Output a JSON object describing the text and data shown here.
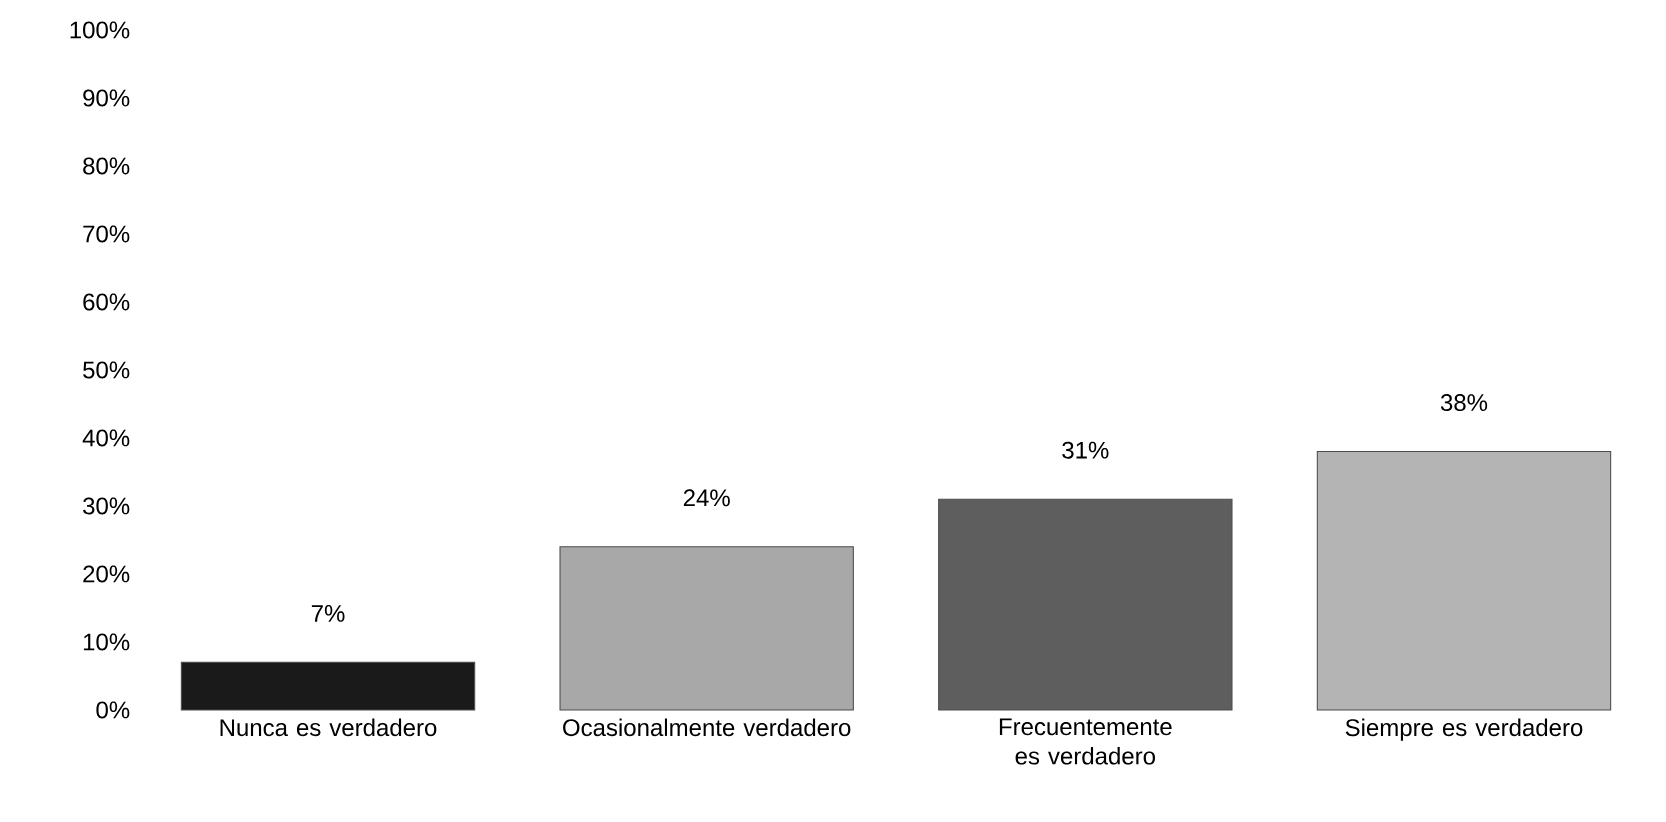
{
  "chart_data": {
    "type": "bar",
    "categories": [
      "Nunca es verdadero",
      "Ocasionalmente verdadero",
      "Frecuentemente es verdadero",
      "Siempre es verdadero"
    ],
    "values": [
      7,
      24,
      31,
      38
    ],
    "colors": [
      "#1a1a1a",
      "#a8a8a8",
      "#5e5e5e",
      "#b4b4b4"
    ],
    "value_labels": [
      "7%",
      "24%",
      "31%",
      "38%"
    ],
    "ylim": [
      0,
      100
    ],
    "yticks": [
      {
        "value": 0,
        "label": "0%"
      },
      {
        "value": 10,
        "label": "10%"
      },
      {
        "value": 20,
        "label": "20%"
      },
      {
        "value": 30,
        "label": "30%"
      },
      {
        "value": 40,
        "label": "40%"
      },
      {
        "value": 50,
        "label": "50%"
      },
      {
        "value": 60,
        "label": "60%"
      },
      {
        "value": 70,
        "label": "70%"
      },
      {
        "value": 80,
        "label": "80%"
      },
      {
        "value": 90,
        "label": "90%"
      },
      {
        "value": 100,
        "label": "100%"
      }
    ],
    "grid": false
  }
}
